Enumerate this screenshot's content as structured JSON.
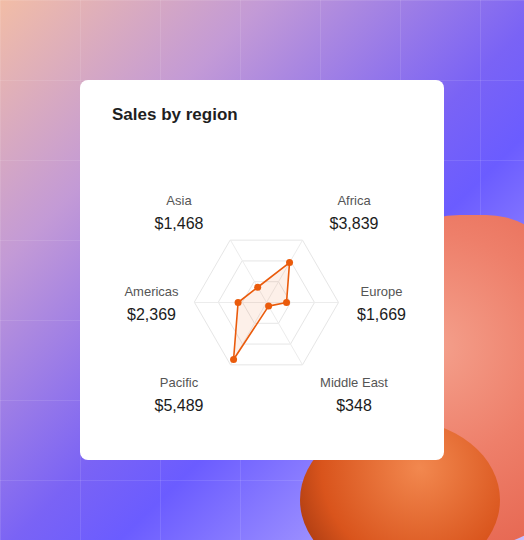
{
  "chart_data": {
    "type": "radar",
    "title": "Sales by region",
    "categories": [
      "Asia",
      "Africa",
      "Europe",
      "Middle East",
      "Pacific",
      "Americas"
    ],
    "values": [
      1468,
      3839,
      1669,
      348,
      5489,
      2369
    ],
    "value_labels": [
      "$1,468",
      "$3,839",
      "$1,669",
      "$348",
      "$5,489",
      "$2,369"
    ],
    "data_labels": true,
    "color": "#ea5b0c",
    "marker": "circle",
    "ylim": [
      0,
      6000
    ],
    "yticks": [
      2000,
      4000,
      6000
    ],
    "grid": true,
    "tick_labels": false
  }
}
